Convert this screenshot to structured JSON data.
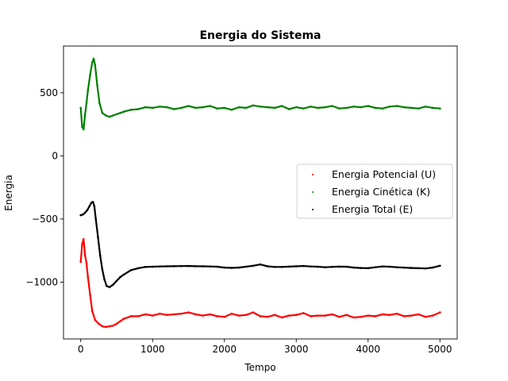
{
  "chart_data": {
    "type": "scatter",
    "title": "Energia do Sistema",
    "xlabel": "Tempo",
    "ylabel": "Energia",
    "xlim": [
      -240,
      5240
    ],
    "ylim": [
      -1450,
      870
    ],
    "xticks": [
      0,
      1000,
      2000,
      3000,
      4000,
      5000
    ],
    "yticks": [
      -1000,
      -500,
      0,
      500
    ],
    "grid": false,
    "legend_position": "center-right",
    "series": [
      {
        "name": "Energia Potencial (U)",
        "color": "#ff0000",
        "x": [
          0,
          20,
          40,
          60,
          80,
          100,
          130,
          160,
          200,
          250,
          300,
          350,
          400,
          450,
          500,
          550,
          600,
          700,
          800,
          900,
          1000,
          1100,
          1200,
          1300,
          1400,
          1500,
          1600,
          1700,
          1800,
          1900,
          2000,
          2100,
          2200,
          2300,
          2400,
          2500,
          2600,
          2700,
          2800,
          2900,
          3000,
          3100,
          3200,
          3300,
          3400,
          3500,
          3600,
          3700,
          3800,
          3900,
          4000,
          4100,
          4200,
          4300,
          4400,
          4500,
          4600,
          4700,
          4800,
          4900,
          5000
        ],
        "y": [
          -840,
          -700,
          -660,
          -790,
          -850,
          -960,
          -1100,
          -1230,
          -1300,
          -1330,
          -1350,
          -1355,
          -1350,
          -1345,
          -1330,
          -1310,
          -1290,
          -1270,
          -1270,
          -1255,
          -1265,
          -1250,
          -1260,
          -1255,
          -1250,
          -1240,
          -1255,
          -1265,
          -1255,
          -1270,
          -1275,
          -1250,
          -1265,
          -1260,
          -1240,
          -1270,
          -1275,
          -1260,
          -1280,
          -1265,
          -1260,
          -1245,
          -1270,
          -1265,
          -1265,
          -1255,
          -1275,
          -1260,
          -1280,
          -1275,
          -1265,
          -1270,
          -1255,
          -1260,
          -1250,
          -1270,
          -1265,
          -1255,
          -1275,
          -1265,
          -1240
        ]
      },
      {
        "name": "Energia Cinética (K)",
        "color": "#008000",
        "x": [
          0,
          20,
          40,
          60,
          80,
          100,
          130,
          160,
          180,
          200,
          230,
          260,
          300,
          350,
          400,
          450,
          500,
          550,
          600,
          700,
          800,
          900,
          1000,
          1100,
          1200,
          1300,
          1400,
          1500,
          1600,
          1700,
          1800,
          1900,
          2000,
          2100,
          2200,
          2300,
          2400,
          2500,
          2600,
          2700,
          2800,
          2900,
          3000,
          3100,
          3200,
          3300,
          3400,
          3500,
          3600,
          3700,
          3800,
          3900,
          4000,
          4100,
          4200,
          4300,
          4400,
          4500,
          4600,
          4700,
          4800,
          4900,
          5000
        ],
        "y": [
          380,
          230,
          210,
          330,
          420,
          520,
          640,
          740,
          770,
          720,
          560,
          420,
          340,
          320,
          310,
          320,
          330,
          340,
          350,
          365,
          370,
          385,
          380,
          390,
          385,
          370,
          380,
          395,
          380,
          385,
          395,
          375,
          380,
          365,
          385,
          380,
          400,
          390,
          385,
          380,
          395,
          370,
          385,
          375,
          390,
          380,
          385,
          395,
          375,
          380,
          390,
          385,
          395,
          380,
          375,
          390,
          395,
          385,
          380,
          375,
          390,
          380,
          375
        ]
      },
      {
        "name": "Energia Total (E)",
        "color": "#000000",
        "x": [
          0,
          30,
          60,
          90,
          120,
          150,
          170,
          190,
          210,
          240,
          270,
          300,
          330,
          360,
          400,
          450,
          500,
          550,
          600,
          700,
          800,
          900,
          1000,
          1100,
          1200,
          1300,
          1400,
          1500,
          1600,
          1700,
          1800,
          1900,
          2000,
          2100,
          2200,
          2300,
          2400,
          2500,
          2600,
          2700,
          2800,
          2900,
          3000,
          3100,
          3200,
          3300,
          3400,
          3500,
          3600,
          3700,
          3800,
          3900,
          4000,
          4100,
          4200,
          4300,
          4400,
          4500,
          4600,
          4700,
          4800,
          4900,
          5000
        ],
        "y": [
          -470,
          -465,
          -450,
          -430,
          -400,
          -370,
          -365,
          -400,
          -500,
          -640,
          -790,
          -900,
          -980,
          -1030,
          -1040,
          -1020,
          -990,
          -960,
          -940,
          -905,
          -890,
          -880,
          -878,
          -876,
          -875,
          -874,
          -873,
          -872,
          -874,
          -875,
          -876,
          -878,
          -885,
          -887,
          -885,
          -878,
          -870,
          -860,
          -875,
          -880,
          -880,
          -877,
          -875,
          -872,
          -876,
          -878,
          -882,
          -879,
          -877,
          -878,
          -885,
          -888,
          -890,
          -882,
          -876,
          -878,
          -882,
          -885,
          -888,
          -890,
          -892,
          -885,
          -870
        ]
      }
    ]
  }
}
